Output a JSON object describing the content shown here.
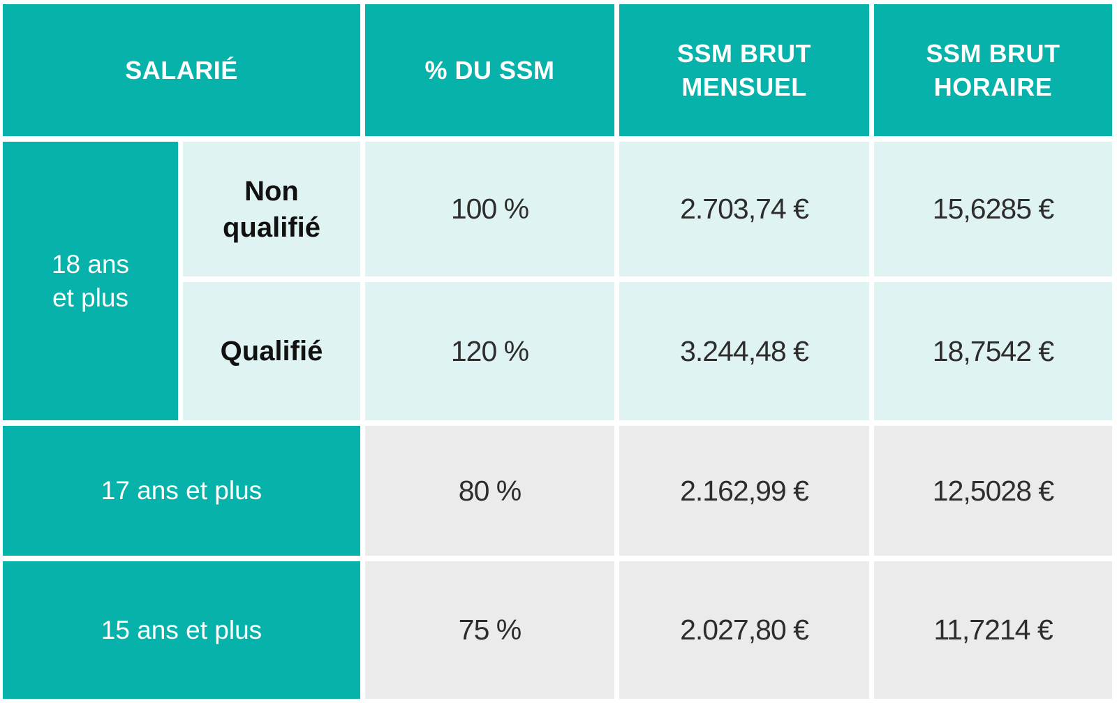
{
  "colors": {
    "accent_teal": "#06b2a9",
    "row_mint": "#dff4f2",
    "row_gray": "#ebebeb",
    "header_text": "#ffffff",
    "value_text": "#2d2d2d",
    "qual_text": "#111111"
  },
  "headers": {
    "salarie": "SALARIÉ",
    "pct_ssm": "% DU SSM",
    "brut_mensuel_lines": [
      "SSM BRUT",
      "MENSUEL"
    ],
    "brut_horaire_lines": [
      "SSM BRUT",
      "HORAIRE"
    ]
  },
  "rows": [
    {
      "age_lines": [
        "18 ans",
        "et plus"
      ],
      "qualification_lines": [
        "Non",
        "qualifié"
      ],
      "pct": "100 %",
      "mensuel": "2.703,74 €",
      "horaire": "15,6285 €"
    },
    {
      "qualification_lines": [
        "Qualifié"
      ],
      "pct": "120 %",
      "mensuel": "3.244,48 €",
      "horaire": "18,7542 €"
    },
    {
      "age": "17 ans et plus",
      "pct": "80 %",
      "mensuel": "2.162,99 €",
      "horaire": "12,5028 €"
    },
    {
      "age": "15 ans et plus",
      "pct": "75 %",
      "mensuel": "2.027,80 €",
      "horaire": "11,7214 €"
    }
  ],
  "chart_data": {
    "type": "table",
    "title": "",
    "columns": [
      "SALARIÉ",
      "% DU SSM",
      "SSM BRUT MENSUEL",
      "SSM BRUT HORAIRE"
    ],
    "rows": [
      [
        "18 ans et plus — Non qualifié",
        "100 %",
        "2.703,74 €",
        "15,6285 €"
      ],
      [
        "18 ans et plus — Qualifié",
        "120 %",
        "3.244,48 €",
        "18,7542 €"
      ],
      [
        "17 ans et plus",
        "80 %",
        "2.162,99 €",
        "12,5028 €"
      ],
      [
        "15 ans et plus",
        "75 %",
        "2.027,80 €",
        "11,7214 €"
      ]
    ]
  }
}
